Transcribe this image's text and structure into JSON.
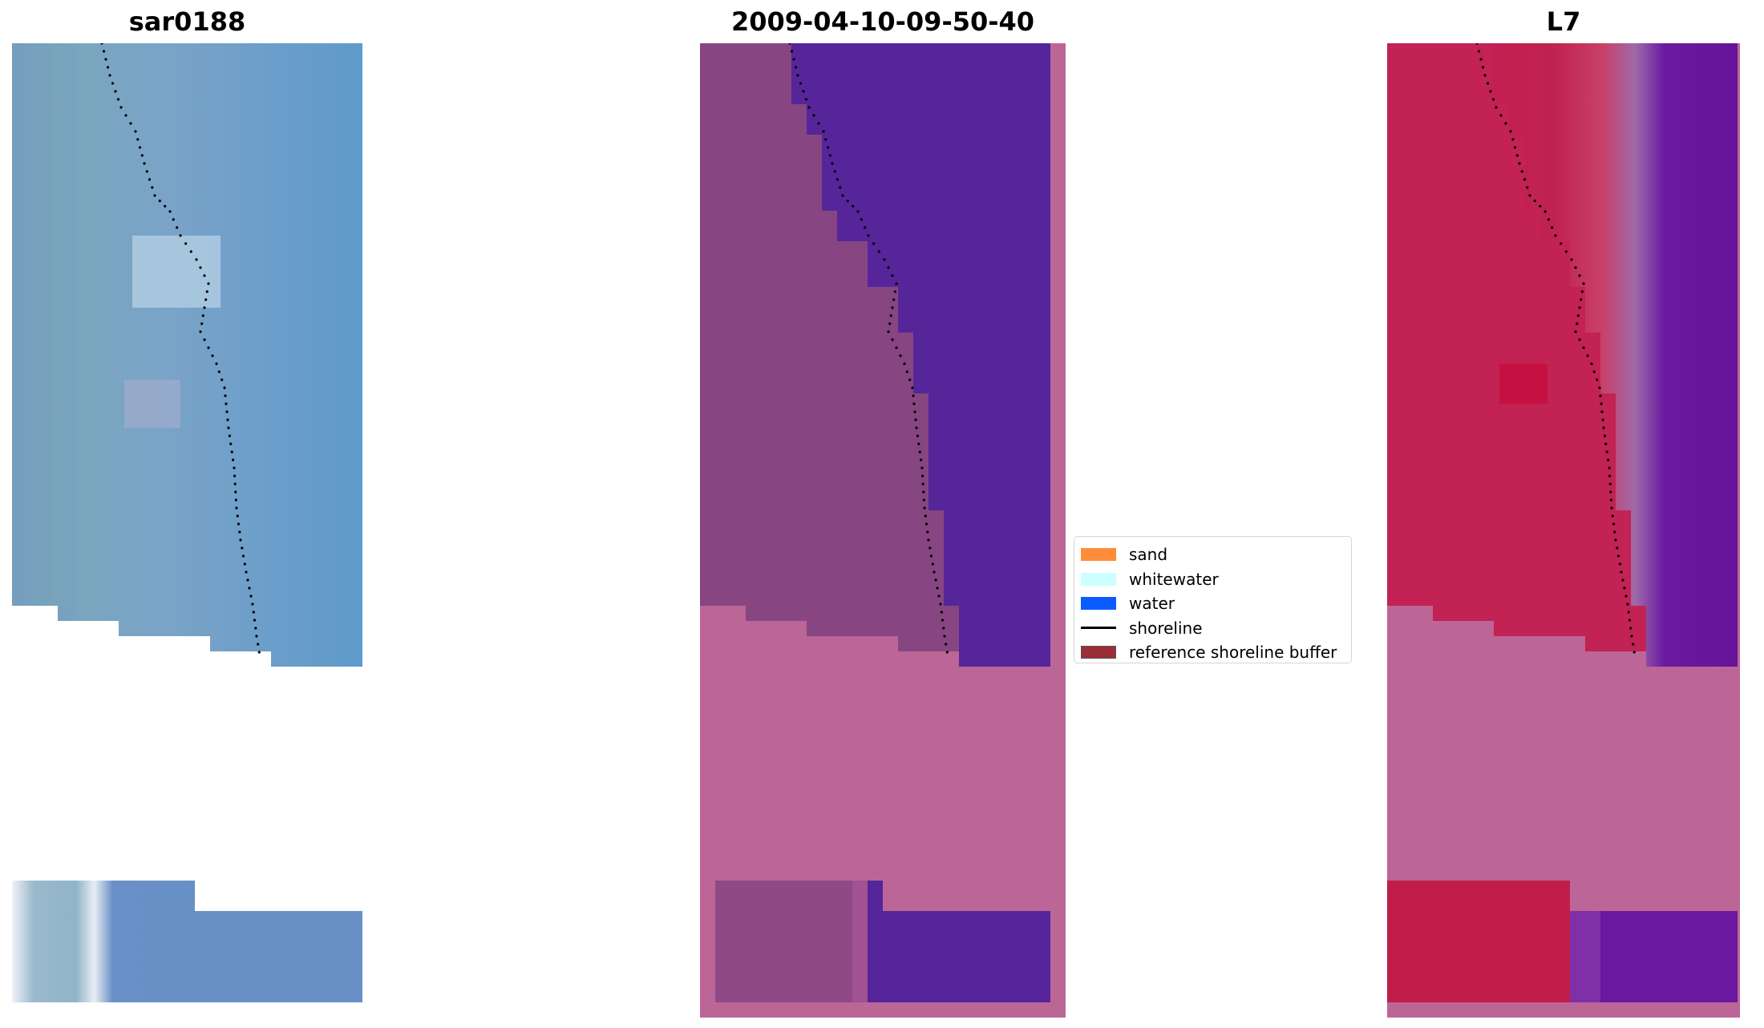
{
  "panels": [
    {
      "title": "sar0188",
      "kind": "rgb-image"
    },
    {
      "title": "2009-04-10-09-50-40",
      "kind": "classified-image"
    },
    {
      "title": "L7",
      "kind": "index-image"
    }
  ],
  "legend": {
    "placement": "center, between middle and right panels",
    "items": [
      {
        "label": "sand",
        "type": "patch",
        "color": "#ff8c3a"
      },
      {
        "label": "whitewater",
        "type": "patch",
        "color": "#ccffff"
      },
      {
        "label": "water",
        "type": "patch",
        "color": "#0a5cff"
      },
      {
        "label": "shoreline",
        "type": "line",
        "color": "#000000"
      },
      {
        "label": "reference shoreline buffer",
        "type": "patch",
        "color": "#9b2e37"
      }
    ]
  },
  "colors": {
    "rgb_image_base": "#6f9ac4",
    "no_data_mask": "#bc6697",
    "classified_land": "#8a4580",
    "classified_water": "#542499",
    "index_land": "#c42050",
    "index_water": "#6a14a0",
    "shoreline_points": "#000000"
  }
}
